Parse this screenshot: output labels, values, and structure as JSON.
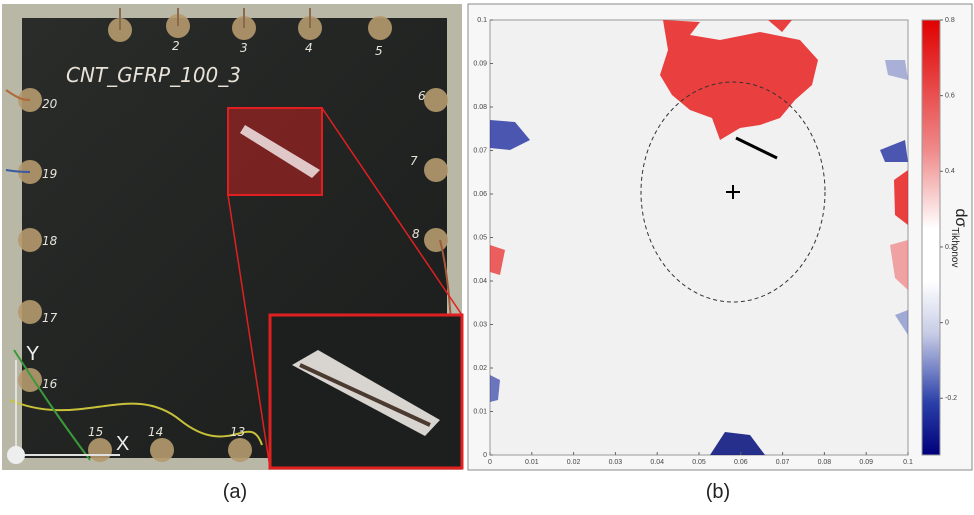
{
  "panel_a": {
    "specimen_label": "CNT_GFRP_100_3",
    "axis_y": "Y",
    "axis_x": "X",
    "pin_labels": [
      "2",
      "3",
      "4",
      "5",
      "6",
      "7",
      "8",
      "20",
      "19",
      "18",
      "17",
      "16",
      "15",
      "14",
      "13"
    ],
    "caption": "(a)"
  },
  "panel_b": {
    "xlim": [
      0,
      0.1
    ],
    "ylim": [
      0,
      0.1
    ],
    "xticks": [
      0,
      0.01,
      0.02,
      0.03,
      0.04,
      0.05,
      0.06,
      0.07,
      0.08,
      0.09,
      0.1
    ],
    "yticks": [
      0,
      0.01,
      0.02,
      0.03,
      0.04,
      0.05,
      0.06,
      0.07,
      0.08,
      0.09,
      0.1
    ],
    "colorbar": {
      "lim": [
        -0.35,
        0.8
      ],
      "ticks": [
        -0.2,
        0,
        0.2,
        0.4,
        0.6,
        0.8
      ],
      "label": "dσ",
      "label_sub": "Tikhonov"
    },
    "caption": "(b)"
  }
}
